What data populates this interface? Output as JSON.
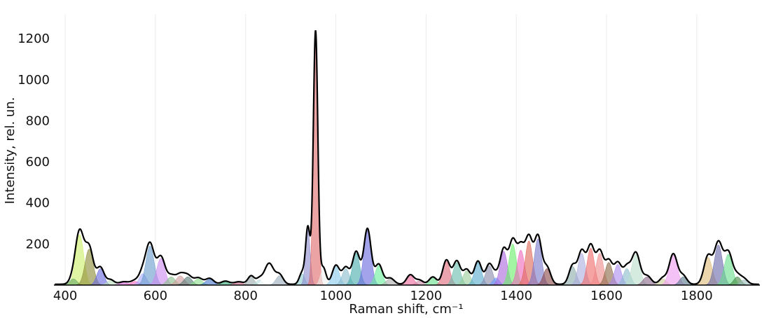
{
  "chart_data": {
    "type": "area",
    "title": "",
    "xlabel": "Raman shift, cm⁻¹",
    "ylabel": "Intensity, rel. un.",
    "xlim": [
      375,
      1940
    ],
    "ylim": [
      0,
      1320
    ],
    "x_ticks": [
      400,
      600,
      800,
      1000,
      1200,
      1400,
      1600,
      1800
    ],
    "y_ticks": [
      200,
      400,
      600,
      800,
      1000,
      1200
    ],
    "grid": true,
    "legend": "none",
    "envelope_color": "#000000",
    "components": [
      {
        "center": 432,
        "height": 245,
        "width": 9,
        "color": "#ccee66"
      },
      {
        "center": 418,
        "height": 30,
        "width": 8,
        "color": "#66aa66"
      },
      {
        "center": 453,
        "height": 175,
        "width": 9,
        "color": "#888833"
      },
      {
        "center": 478,
        "height": 80,
        "width": 8,
        "color": "#6666dd"
      },
      {
        "center": 500,
        "height": 22,
        "width": 8,
        "color": "#bbddbb"
      },
      {
        "center": 530,
        "height": 12,
        "width": 10,
        "color": "#dd66dd"
      },
      {
        "center": 555,
        "height": 18,
        "width": 9,
        "color": "#ff66bb"
      },
      {
        "center": 572,
        "height": 55,
        "width": 8,
        "color": "#aaaaff"
      },
      {
        "center": 588,
        "height": 190,
        "width": 9,
        "color": "#6699cc"
      },
      {
        "center": 612,
        "height": 130,
        "width": 9,
        "color": "#cc88ee"
      },
      {
        "center": 635,
        "height": 40,
        "width": 9,
        "color": "#88bb88"
      },
      {
        "center": 655,
        "height": 45,
        "width": 9,
        "color": "#cc9999"
      },
      {
        "center": 672,
        "height": 40,
        "width": 9,
        "color": "#557777"
      },
      {
        "center": 695,
        "height": 30,
        "width": 9,
        "color": "#88dd88"
      },
      {
        "center": 720,
        "height": 28,
        "width": 9,
        "color": "#4477cc"
      },
      {
        "center": 755,
        "height": 15,
        "width": 9,
        "color": "#33aa77"
      },
      {
        "center": 785,
        "height": 12,
        "width": 10,
        "color": "#cc6688"
      },
      {
        "center": 812,
        "height": 40,
        "width": 7,
        "color": "#99aaaa"
      },
      {
        "center": 830,
        "height": 25,
        "width": 7,
        "color": "#bbdddd"
      },
      {
        "center": 852,
        "height": 100,
        "width": 10,
        "color": "#ffffff"
      },
      {
        "center": 875,
        "height": 45,
        "width": 8,
        "color": "#99aabb"
      },
      {
        "center": 925,
        "height": 55,
        "width": 6,
        "color": "#88cccc"
      },
      {
        "center": 938,
        "height": 270,
        "width": 5,
        "color": "#8888cc"
      },
      {
        "center": 955,
        "height": 1210,
        "width": 5,
        "color": "#dd6666"
      },
      {
        "center": 972,
        "height": 80,
        "width": 6,
        "color": "#eeeeee"
      },
      {
        "center": 1000,
        "height": 90,
        "width": 8,
        "color": "#88ccee"
      },
      {
        "center": 1022,
        "height": 80,
        "width": 8,
        "color": "#88bbcc"
      },
      {
        "center": 1045,
        "height": 155,
        "width": 8,
        "color": "#44aaaa"
      },
      {
        "center": 1070,
        "height": 265,
        "width": 8,
        "color": "#6666dd"
      },
      {
        "center": 1095,
        "height": 95,
        "width": 8,
        "color": "#66ee99"
      },
      {
        "center": 1120,
        "height": 30,
        "width": 9,
        "color": "#aaaaaa"
      },
      {
        "center": 1165,
        "height": 45,
        "width": 8,
        "color": "#ee6699"
      },
      {
        "center": 1185,
        "height": 20,
        "width": 8,
        "color": "#cc88aa"
      },
      {
        "center": 1215,
        "height": 35,
        "width": 8,
        "color": "#66dd88"
      },
      {
        "center": 1245,
        "height": 115,
        "width": 8,
        "color": "#dd6677"
      },
      {
        "center": 1268,
        "height": 110,
        "width": 8,
        "color": "#66bbaa"
      },
      {
        "center": 1290,
        "height": 70,
        "width": 8,
        "color": "#99cc99"
      },
      {
        "center": 1315,
        "height": 110,
        "width": 8,
        "color": "#55aacc"
      },
      {
        "center": 1340,
        "height": 95,
        "width": 8,
        "color": "#8888aa"
      },
      {
        "center": 1355,
        "height": 35,
        "width": 7,
        "color": "#6699ff"
      },
      {
        "center": 1372,
        "height": 165,
        "width": 8,
        "color": "#aa66dd"
      },
      {
        "center": 1392,
        "height": 200,
        "width": 8,
        "color": "#66ee66"
      },
      {
        "center": 1410,
        "height": 170,
        "width": 8,
        "color": "#ee66bb"
      },
      {
        "center": 1428,
        "height": 215,
        "width": 8,
        "color": "#dd6655"
      },
      {
        "center": 1448,
        "height": 225,
        "width": 8,
        "color": "#7777cc"
      },
      {
        "center": 1468,
        "height": 80,
        "width": 8,
        "color": "#884444"
      },
      {
        "center": 1525,
        "height": 90,
        "width": 8,
        "color": "#88aaaa"
      },
      {
        "center": 1545,
        "height": 155,
        "width": 8,
        "color": "#aaaadd"
      },
      {
        "center": 1565,
        "height": 180,
        "width": 8,
        "color": "#ee6666"
      },
      {
        "center": 1585,
        "height": 155,
        "width": 8,
        "color": "#ee8888"
      },
      {
        "center": 1605,
        "height": 110,
        "width": 8,
        "color": "#886644"
      },
      {
        "center": 1625,
        "height": 100,
        "width": 8,
        "color": "#aa88ee"
      },
      {
        "center": 1645,
        "height": 80,
        "width": 8,
        "color": "#88bbcc"
      },
      {
        "center": 1665,
        "height": 150,
        "width": 9,
        "color": "#bbddcc"
      },
      {
        "center": 1690,
        "height": 40,
        "width": 9,
        "color": "#886688"
      },
      {
        "center": 1725,
        "height": 30,
        "width": 8,
        "color": "#cccc99"
      },
      {
        "center": 1748,
        "height": 145,
        "width": 9,
        "color": "#ee99ee"
      },
      {
        "center": 1770,
        "height": 40,
        "width": 8,
        "color": "#557788"
      },
      {
        "center": 1825,
        "height": 135,
        "width": 9,
        "color": "#ddbb77"
      },
      {
        "center": 1848,
        "height": 195,
        "width": 9,
        "color": "#6666aa"
      },
      {
        "center": 1870,
        "height": 150,
        "width": 9,
        "color": "#66dd88"
      },
      {
        "center": 1890,
        "height": 40,
        "width": 8,
        "color": "#448844"
      },
      {
        "center": 1905,
        "height": 25,
        "width": 8,
        "color": "#99bbbb"
      }
    ]
  }
}
